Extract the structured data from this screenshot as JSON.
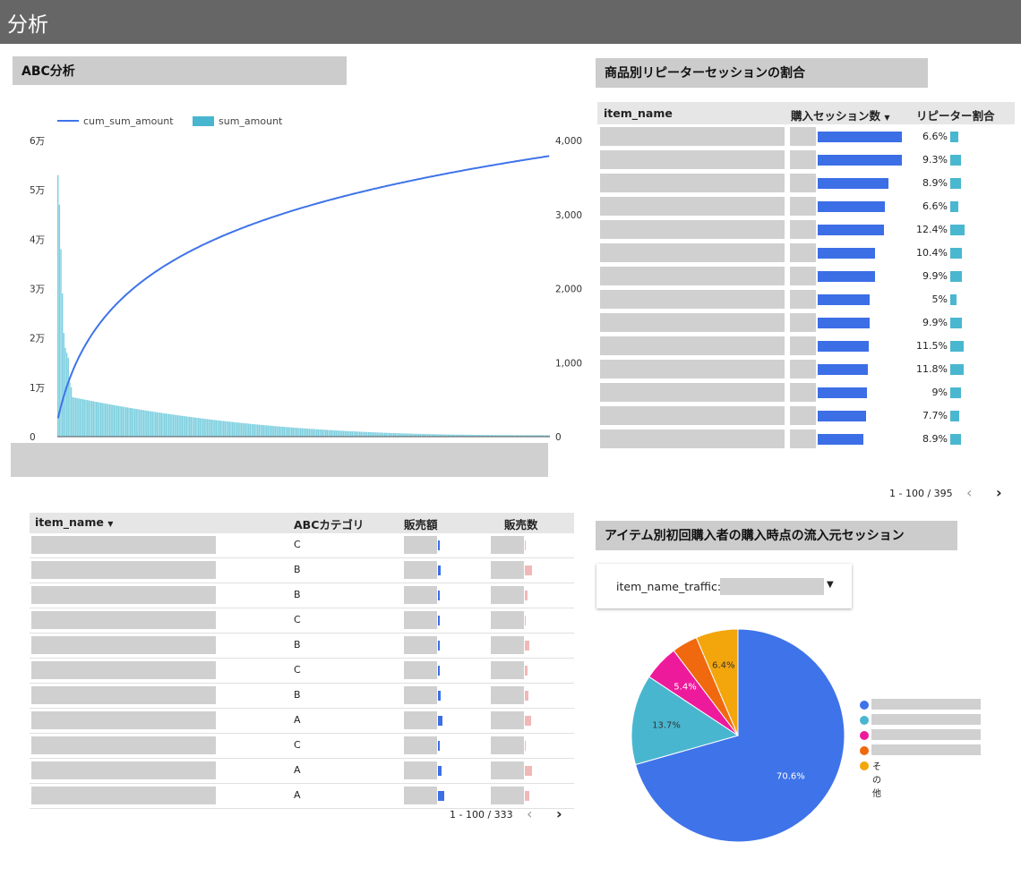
{
  "header": {
    "title": "分析"
  },
  "abc_chart": {
    "title": "ABC分析",
    "legend": {
      "line": "cum_sum_amount",
      "bar": "sum_amount"
    },
    "left_ticks": [
      "6万",
      "5万",
      "4万",
      "3万",
      "2万",
      "1万",
      "0"
    ],
    "right_ticks": [
      "4,000",
      "3,000",
      "2,000",
      "1,000",
      "0"
    ]
  },
  "chart_data": {
    "type": "bar+line",
    "series": [
      {
        "name": "sum_amount",
        "axis": "left",
        "type": "bar",
        "leading_values": [
          53000,
          47000,
          38000,
          29000,
          21000,
          18000,
          17000,
          16000,
          11000,
          10000
        ],
        "tail_start": 8000,
        "tail_end": 300,
        "count": 333
      },
      {
        "name": "cum_sum_amount",
        "axis": "right",
        "type": "line",
        "start": 250,
        "end": 3790,
        "count": 333
      }
    ],
    "left_ylim": [
      0,
      60000
    ],
    "right_ylim": [
      0,
      4000
    ]
  },
  "repeater": {
    "title": "商品別リピーターセッションの割合",
    "columns": {
      "name": "item_name",
      "sessions": "購入セッション数",
      "ratio": "リピーター割合"
    },
    "sort_icon": "▼",
    "rows": [
      {
        "session_fraction": 1.0,
        "ratio": "6.6%",
        "ratio_value": 6.6
      },
      {
        "session_fraction": 1.0,
        "ratio": "9.3%",
        "ratio_value": 9.3
      },
      {
        "session_fraction": 0.84,
        "ratio": "8.9%",
        "ratio_value": 8.9
      },
      {
        "session_fraction": 0.8,
        "ratio": "6.6%",
        "ratio_value": 6.6
      },
      {
        "session_fraction": 0.79,
        "ratio": "12.4%",
        "ratio_value": 12.4
      },
      {
        "session_fraction": 0.68,
        "ratio": "10.4%",
        "ratio_value": 10.4
      },
      {
        "session_fraction": 0.68,
        "ratio": "9.9%",
        "ratio_value": 9.9
      },
      {
        "session_fraction": 0.62,
        "ratio": "5%",
        "ratio_value": 5.0
      },
      {
        "session_fraction": 0.62,
        "ratio": "9.9%",
        "ratio_value": 9.9
      },
      {
        "session_fraction": 0.61,
        "ratio": "11.5%",
        "ratio_value": 11.5
      },
      {
        "session_fraction": 0.59,
        "ratio": "11.8%",
        "ratio_value": 11.8
      },
      {
        "session_fraction": 0.58,
        "ratio": "9%",
        "ratio_value": 9.0
      },
      {
        "session_fraction": 0.57,
        "ratio": "7.7%",
        "ratio_value": 7.7
      },
      {
        "session_fraction": 0.54,
        "ratio": "8.9%",
        "ratio_value": 8.9
      }
    ],
    "pager": {
      "text": "1 - 100 / 395"
    }
  },
  "abc_table": {
    "columns": {
      "name": "item_name",
      "category": "ABCカテゴリ",
      "amount": "販売額",
      "count": "販売数"
    },
    "sort_icon": "▼",
    "rows": [
      {
        "category": "C",
        "amount_fraction": 0.2,
        "count_fraction": 0.1
      },
      {
        "category": "B",
        "amount_fraction": 0.4,
        "count_fraction": 0.85
      },
      {
        "category": "B",
        "amount_fraction": 0.35,
        "count_fraction": 0.3
      },
      {
        "category": "C",
        "amount_fraction": 0.2,
        "count_fraction": 0.15
      },
      {
        "category": "B",
        "amount_fraction": 0.25,
        "count_fraction": 0.55
      },
      {
        "category": "C",
        "amount_fraction": 0.2,
        "count_fraction": 0.3
      },
      {
        "category": "B",
        "amount_fraction": 0.4,
        "count_fraction": 0.45
      },
      {
        "category": "A",
        "amount_fraction": 0.65,
        "count_fraction": 0.8
      },
      {
        "category": "C",
        "amount_fraction": 0.2,
        "count_fraction": 0.15
      },
      {
        "category": "A",
        "amount_fraction": 0.6,
        "count_fraction": 0.9
      },
      {
        "category": "A",
        "amount_fraction": 1.0,
        "count_fraction": 0.55
      }
    ],
    "pager": {
      "text": "1 - 100 / 333"
    }
  },
  "pie": {
    "title": "アイテム別初回購入者の購入時点の流入元セッション",
    "filter_label": "item_name_traffic:",
    "slices": [
      {
        "label": "70.6%",
        "value": 70.6,
        "color": "#3f73e9"
      },
      {
        "label": "13.7%",
        "value": 13.7,
        "color": "#49b6cf"
      },
      {
        "label": "5.4%",
        "value": 5.4,
        "color": "#ee1a9c"
      },
      {
        "label": "",
        "value": 3.9,
        "color": "#f0690f"
      },
      {
        "label": "6.4%",
        "value": 6.4,
        "color": "#f3a50c"
      }
    ],
    "legend_other": "その他"
  },
  "icons": {
    "prev": "chevron-left-icon",
    "next": "chevron-right-icon",
    "sort": "sort-down-icon",
    "dropdown": "caret-down-icon"
  }
}
